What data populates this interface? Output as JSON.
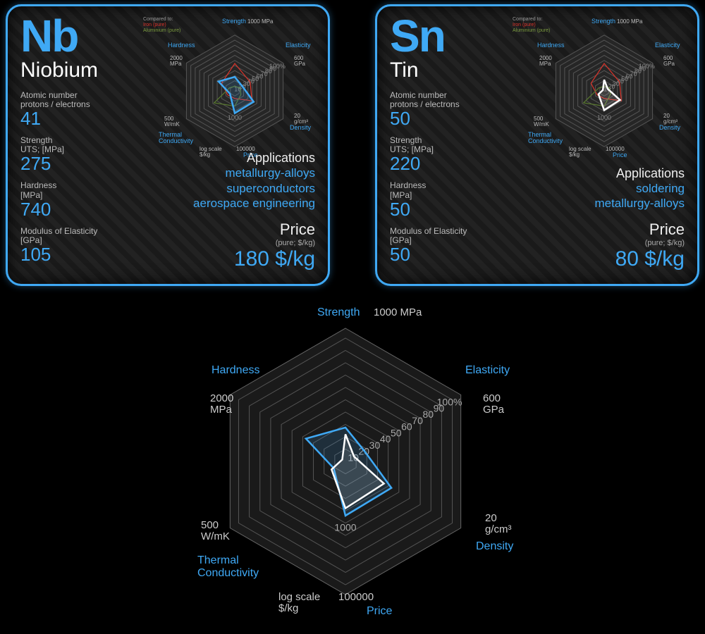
{
  "axes": {
    "order": [
      "strength",
      "elasticity",
      "density",
      "price",
      "thermal",
      "hardness"
    ],
    "labels": {
      "strength": "Strength",
      "elasticity": "Elasticity",
      "density": "Density",
      "price": "Price",
      "thermal": "Thermal\nConductivity",
      "hardness": "Hardness"
    },
    "units": {
      "strength": "1000 MPa",
      "elasticity": "600\nGPa",
      "density": "20\ng/cm³",
      "price": "100000",
      "price_sub": "log scale\n$/kg",
      "thermal": "500\nW/mK",
      "hardness": "2000\nMPa"
    },
    "ticks_horiz": [
      "10",
      "20",
      "30",
      "40",
      "50",
      "60",
      "70",
      "80",
      "90",
      "100%"
    ],
    "price_ticks": [
      "1000"
    ]
  },
  "legend": {
    "title": "Compared to:",
    "iron": "Iron (pure)",
    "alum": "Aluminium (pure)"
  },
  "elements": [
    {
      "symbol": "Nb",
      "name": "Niobium",
      "props": [
        {
          "label": "Atomic number\nprotons / electrons",
          "value": "41"
        },
        {
          "label": "Strength\nUTS; [MPa]",
          "value": "275"
        },
        {
          "label": "Hardness\n[MPa]",
          "value": "740"
        },
        {
          "label": "Modulus of Elasticity\n[GPa]",
          "value": "105"
        }
      ],
      "apps": [
        "metallurgy-alloys",
        "superconductors",
        "aerospace engineering"
      ],
      "price": "180 $/kg",
      "price_note": "(pure; $/kg)",
      "radar_pct": {
        "strength": 27.5,
        "elasticity": 17.5,
        "density": 43,
        "price": 44,
        "thermal": 11,
        "hardness": 37
      },
      "color": "#3fa9f5"
    },
    {
      "symbol": "Sn",
      "name": "Tin",
      "props": [
        {
          "label": "Atomic number\nprotons / electrons",
          "value": "50"
        },
        {
          "label": "Strength\nUTS; [MPa]",
          "value": "220"
        },
        {
          "label": "Hardness\n[MPa]",
          "value": "50"
        },
        {
          "label": "Modulus of Elasticity\n[GPa]",
          "value": "50"
        }
      ],
      "apps": [
        "soldering",
        "metallurgy-alloys"
      ],
      "price": "80 $/kg",
      "price_note": "(pure; $/kg)",
      "radar_pct": {
        "strength": 22,
        "elasticity": 8,
        "density": 36,
        "price": 38,
        "thermal": 13,
        "hardness": 3
      },
      "color": "#ffffff"
    }
  ],
  "reference": {
    "iron": {
      "strength": 54,
      "elasticity": 35,
      "density": 39,
      "price": 15,
      "thermal": 16,
      "hardness": 30
    },
    "alum": {
      "strength": 9,
      "elasticity": 12,
      "density": 14,
      "price": 30,
      "thermal": 47,
      "hardness": 12
    }
  },
  "colors": {
    "accent": "#3fa9f5",
    "iron": "#d9332a",
    "alum": "#5a7a2f",
    "bg": "#000000"
  }
}
